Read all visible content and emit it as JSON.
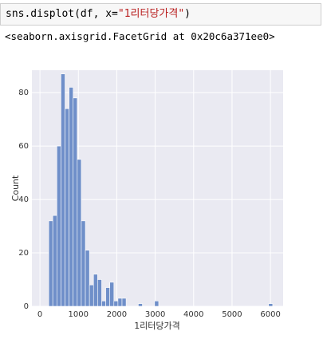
{
  "cell": {
    "code": [
      "sns.displot(df, x=",
      "\"1리터당가격\"",
      ")"
    ],
    "output": "<seaborn.axisgrid.FacetGrid at 0x20c6a371ee0>"
  },
  "chart_data": {
    "type": "histogram",
    "xlabel": "1리터당가격",
    "ylabel": "Count",
    "color": "#6f8fc9",
    "bins": [
      228,
      334,
      440,
      546,
      652,
      758,
      864,
      970,
      1076,
      1182,
      1288,
      1394,
      1500,
      1606,
      1712,
      1818,
      1924,
      2030,
      2136,
      2242,
      2348,
      2454,
      2560,
      2666,
      2772,
      2878,
      2984,
      3090,
      3196,
      3302,
      3408,
      3514,
      3620,
      3726,
      3832,
      3938,
      4044,
      4150,
      4256,
      4362,
      4468,
      4574,
      4680,
      4786,
      4892,
      4998,
      5104,
      5210,
      5316,
      5422,
      5528,
      5634,
      5740,
      5846,
      5952,
      6058
    ],
    "values": [
      32,
      34,
      60,
      87,
      74,
      82,
      78,
      55,
      32,
      21,
      8,
      12,
      10,
      2,
      7,
      9,
      2,
      3,
      3,
      0,
      0,
      0,
      1,
      0,
      0,
      0,
      2,
      0,
      0,
      0,
      0,
      0,
      0,
      0,
      0,
      0,
      0,
      0,
      0,
      0,
      0,
      0,
      0,
      0,
      0,
      0,
      0,
      0,
      0,
      0,
      0,
      0,
      0,
      0,
      1
    ],
    "xlim": [
      -210,
      6330
    ],
    "ylim": [
      0,
      88.4
    ],
    "xticks": [
      0,
      1000,
      2000,
      3000,
      4000,
      5000,
      6000
    ],
    "yticks": [
      0,
      20,
      40,
      60,
      80
    ],
    "grid": true
  }
}
